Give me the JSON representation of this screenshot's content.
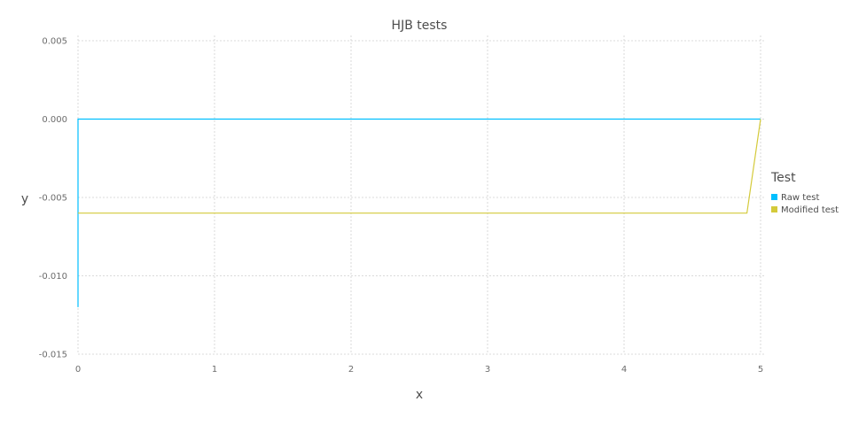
{
  "chart_data": {
    "type": "line",
    "title": "HJB tests",
    "xlabel": "x",
    "ylabel": "y",
    "xlim": [
      0,
      5
    ],
    "ylim": [
      -0.015,
      0.005
    ],
    "xticks": [
      0,
      1,
      2,
      3,
      4,
      5
    ],
    "xtick_labels": [
      "0",
      "1",
      "2",
      "3",
      "4",
      "5"
    ],
    "yticks": [
      -0.015,
      -0.01,
      -0.005,
      0.0,
      0.005
    ],
    "ytick_labels": [
      "-0.015",
      "-0.010",
      "-0.005",
      "0.000",
      "0.005"
    ],
    "grid": true,
    "legend": {
      "title": "Test",
      "placement": "right"
    },
    "series": [
      {
        "name": "Raw test",
        "color": "#00bfff",
        "x": [
          0,
          0,
          5
        ],
        "y": [
          -0.012,
          0.0,
          0.0
        ]
      },
      {
        "name": "Modified test",
        "color": "#d4ca3a",
        "x": [
          0,
          4.9,
          5
        ],
        "y": [
          -0.006,
          -0.006,
          0.0
        ]
      }
    ]
  }
}
